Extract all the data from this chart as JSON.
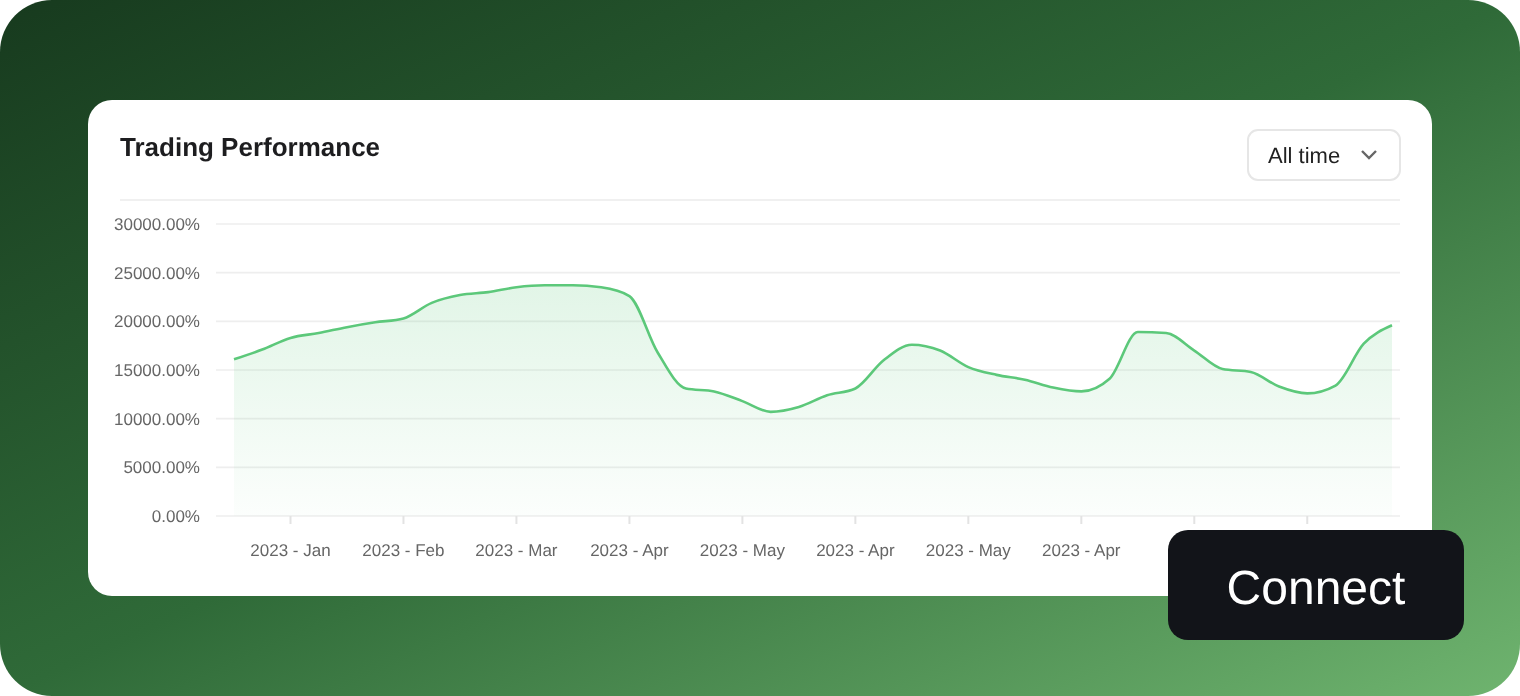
{
  "chart_data": {
    "type": "area",
    "title": "Trading Performance",
    "annotations": [
      "All time",
      "Connect"
    ],
    "categories": [
      null,
      null,
      "2023 - Jan",
      null,
      null,
      null,
      "2023 - Feb",
      null,
      null,
      null,
      "2023 - Mar",
      null,
      null,
      null,
      "2023 - Apr",
      null,
      null,
      null,
      "2023 -  May",
      null,
      null,
      null,
      "2023 - Apr",
      null,
      null,
      null,
      "2023 -  May",
      null,
      null,
      null,
      "2023 - Apr",
      null,
      null,
      null,
      null,
      null,
      null,
      null,
      null,
      null,
      null,
      null
    ],
    "series": [
      {
        "color": "#5cc87a",
        "values": [
          16100,
          17100,
          18300,
          18800,
          19400,
          19900,
          20300,
          21900,
          22700,
          23000,
          23500,
          23700,
          23700,
          23500,
          22600,
          16800,
          13100,
          12800,
          11800,
          10700,
          11200,
          12400,
          13100,
          16000,
          17600,
          17000,
          15300,
          14500,
          14000,
          13200,
          12800,
          14100,
          18900,
          18800,
          17000,
          15100,
          14800,
          13300,
          12600,
          13400,
          17700,
          19600
        ]
      }
    ],
    "ylim": [
      0,
      30000
    ],
    "yticks": [
      {
        "value": 0,
        "label": "0.00%"
      },
      {
        "value": 5000,
        "label": "5000.00%"
      },
      {
        "value": 10000,
        "label": "10000.00%"
      },
      {
        "value": 15000,
        "label": "15000.00%"
      },
      {
        "value": 20000,
        "label": "20000.00%"
      },
      {
        "value": 25000,
        "label": "25000.00%"
      },
      {
        "value": 30000,
        "label": "30000.00%"
      }
    ],
    "grid": "y"
  }
}
